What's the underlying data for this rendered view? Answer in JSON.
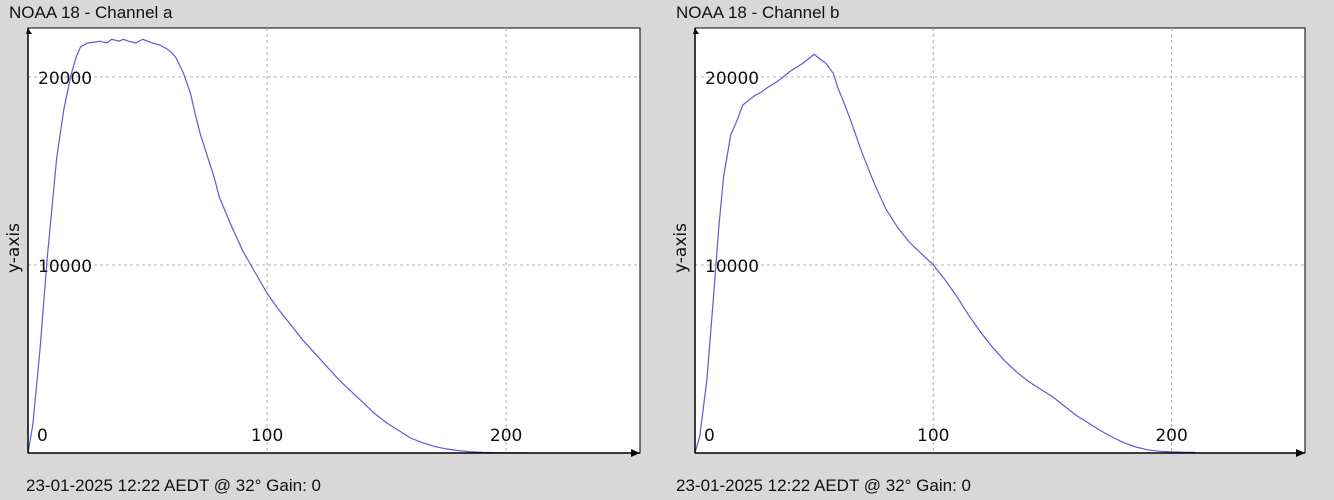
{
  "charts": [
    {
      "title": "NOAA 18 - Channel a",
      "footer": "23-01-2025 12:22 AEDT @ 32° Gain: 0",
      "chart_data": {
        "type": "line",
        "title": "NOAA 18 - Channel a",
        "xlabel": "",
        "ylabel": "y-axis",
        "xlim": [
          0,
          256
        ],
        "ylim": [
          0,
          22600
        ],
        "xticks": [
          0,
          100,
          200
        ],
        "yticks": [
          10000,
          20000
        ],
        "grid": true,
        "color": "#5b5bd6",
        "series": [
          {
            "x": [
              0,
              2,
              5,
              8,
              10,
              12,
              15,
              18,
              20,
              22,
              25,
              28,
              30,
              33,
              35,
              38,
              40,
              42,
              45,
              48,
              50,
              52,
              55,
              58,
              60,
              62,
              65,
              68,
              70,
              72,
              75,
              78,
              80,
              85,
              90,
              95,
              100,
              105,
              110,
              115,
              120,
              125,
              130,
              135,
              140,
              145,
              150,
              155,
              160,
              165,
              170,
              175,
              180,
              185,
              190,
              195,
              200,
              205,
              210
            ],
            "y": [
              0,
              1500,
              5500,
              10300,
              13000,
              15700,
              18300,
              20100,
              21000,
              21600,
              21800,
              21850,
              21900,
              21800,
              22000,
              21900,
              22000,
              21900,
              21800,
              22000,
              21900,
              21800,
              21700,
              21500,
              21300,
              21000,
              20200,
              19100,
              18000,
              17000,
              15800,
              14600,
              13600,
              12100,
              10700,
              9600,
              8500,
              7600,
              6800,
              6000,
              5300,
              4600,
              3900,
              3300,
              2700,
              2100,
              1600,
              1200,
              800,
              550,
              350,
              220,
              130,
              70,
              30,
              15,
              10,
              5,
              0
            ]
          }
        ]
      }
    },
    {
      "title": "NOAA 18 - Channel b",
      "footer": "23-01-2025 12:22 AEDT @ 32° Gain: 0",
      "chart_data": {
        "type": "line",
        "title": "NOAA 18 - Channel b",
        "xlabel": "",
        "ylabel": "y-axis",
        "xlim": [
          0,
          256
        ],
        "ylim": [
          0,
          22600
        ],
        "xticks": [
          0,
          100,
          200
        ],
        "yticks": [
          10000,
          20000
        ],
        "grid": true,
        "color": "#5b5bd6",
        "series": [
          {
            "x": [
              0,
              2,
              5,
              8,
              10,
              12,
              15,
              18,
              20,
              22,
              25,
              28,
              30,
              35,
              40,
              45,
              48,
              50,
              52,
              55,
              58,
              60,
              62,
              65,
              70,
              75,
              80,
              85,
              90,
              95,
              100,
              105,
              110,
              115,
              120,
              125,
              130,
              135,
              140,
              145,
              150,
              155,
              160,
              165,
              170,
              175,
              180,
              185,
              190,
              195,
              200,
              205,
              210
            ],
            "y": [
              0,
              900,
              3900,
              8700,
              12000,
              14700,
              16900,
              17800,
              18500,
              18700,
              19000,
              19200,
              19400,
              19800,
              20300,
              20700,
              21000,
              21200,
              21000,
              20700,
              20200,
              19400,
              18800,
              17800,
              16000,
              14400,
              13000,
              12000,
              11200,
              10600,
              10000,
              9200,
              8300,
              7300,
              6400,
              5600,
              4900,
              4300,
              3800,
              3400,
              3000,
              2500,
              2000,
              1600,
              1200,
              850,
              550,
              320,
              170,
              90,
              60,
              40,
              30
            ]
          }
        ]
      }
    }
  ]
}
